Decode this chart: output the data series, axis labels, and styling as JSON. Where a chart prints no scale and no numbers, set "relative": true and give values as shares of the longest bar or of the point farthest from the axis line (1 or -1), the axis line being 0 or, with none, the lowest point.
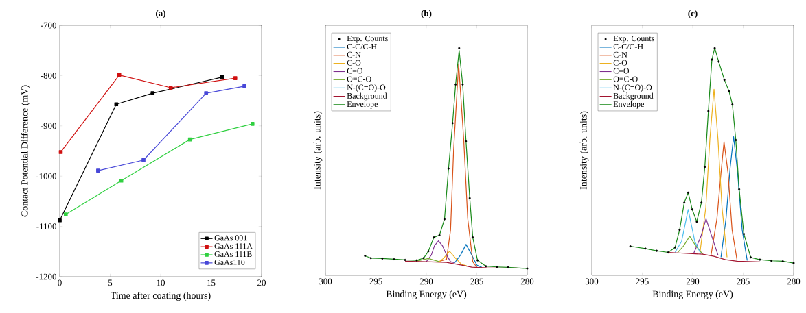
{
  "chart_data": [
    {
      "type": "line",
      "title": "(a)",
      "xlabel": "Time after coating (hours)",
      "ylabel": "Contact Potential Difference (mV)",
      "xlim": [
        0,
        20
      ],
      "xticks": [
        0,
        5,
        10,
        15,
        20
      ],
      "ylim": [
        -1200,
        -700
      ],
      "yticks": [
        -1200,
        -1100,
        -1000,
        -900,
        -800,
        -700
      ],
      "legend": "bottom right",
      "marker": "square",
      "series": [
        {
          "name": "GaAs 001",
          "color": "#000000",
          "x": [
            0.0,
            5.6,
            9.2,
            16.1
          ],
          "values": [
            -1088,
            -857,
            -835,
            -803
          ]
        },
        {
          "name": "GaAs 111A",
          "color": "#d01010",
          "x": [
            0.1,
            5.9,
            11.0,
            17.4
          ],
          "values": [
            -952,
            -799,
            -824,
            -805
          ]
        },
        {
          "name": "GaAs 111B",
          "color": "#30d040",
          "x": [
            0.6,
            6.1,
            12.9,
            19.1
          ],
          "values": [
            -1076,
            -1009,
            -927,
            -896
          ]
        },
        {
          "name": "GaAs110",
          "color": "#4848d8",
          "x": [
            3.8,
            8.3,
            14.5,
            18.3
          ],
          "values": [
            -989,
            -968,
            -835,
            -821
          ]
        }
      ]
    },
    {
      "type": "line",
      "title": "(b)",
      "xlabel": "Binding Energy (eV)",
      "ylabel": "Intensity (arb. units)",
      "relative": true,
      "xlim": [
        300,
        280
      ],
      "xticks": [
        300,
        295,
        290,
        285,
        280
      ],
      "legend": "top left",
      "series": [
        {
          "name": "Exp. Counts",
          "type": "scatter",
          "color": "#000000",
          "x": [
            296.07,
            295.5,
            294.36,
            293.2,
            292.1,
            290.95,
            290.27,
            289.8,
            289.25,
            288.7,
            288.2,
            287.8,
            287.4,
            287.1,
            286.75,
            286.4,
            286.07,
            285.7,
            285.4,
            284.93,
            284.1,
            283.0,
            281.9,
            280.0
          ],
          "values": [
            0.086,
            0.076,
            0.074,
            0.071,
            0.068,
            0.066,
            0.076,
            0.106,
            0.167,
            0.177,
            0.247,
            0.47,
            0.67,
            0.84,
            1.0,
            0.84,
            0.59,
            0.34,
            0.167,
            0.066,
            0.04,
            0.037,
            0.035,
            0.03
          ]
        },
        {
          "name": "C-C/C-H",
          "color": "#0072bd",
          "x": [
            287.2,
            286.6,
            286.07,
            285.5,
            285.0,
            284.5
          ],
          "values": [
            0.055,
            0.09,
            0.136,
            0.09,
            0.045,
            0.035
          ]
        },
        {
          "name": "C-N",
          "color": "#d95319",
          "x": [
            289.0,
            288.0,
            287.6,
            287.3,
            286.8,
            286.3,
            285.9,
            285.4,
            285.0
          ],
          "values": [
            0.058,
            0.07,
            0.2,
            0.55,
            0.93,
            0.6,
            0.25,
            0.06,
            0.036
          ]
        },
        {
          "name": "C-O",
          "color": "#edb120",
          "x": [
            288.8,
            288.3,
            287.7,
            287.1,
            286.5,
            286.0
          ],
          "values": [
            0.057,
            0.075,
            0.106,
            0.075,
            0.048,
            0.042
          ]
        },
        {
          "name": "C=O",
          "color": "#7e2f8e",
          "x": [
            290.0,
            289.5,
            289.2,
            288.8,
            288.4,
            288.0,
            287.6,
            287.2
          ],
          "values": [
            0.06,
            0.09,
            0.13,
            0.152,
            0.13,
            0.09,
            0.06,
            0.055
          ]
        },
        {
          "name": "O=C-O",
          "color": "#77ac30",
          "x": [
            291.0,
            289.8,
            288.7
          ],
          "values": [
            0.062,
            0.074,
            0.06
          ]
        },
        {
          "name": "N-(C=O)-O",
          "color": "#4dbeee"
        },
        {
          "name": "Background",
          "color": "#a2142f",
          "x": [
            292.1,
            290.0,
            288.0,
            286.5,
            285.5,
            284.0,
            281.0
          ],
          "values": [
            0.062,
            0.06,
            0.057,
            0.045,
            0.036,
            0.033,
            0.032
          ]
        },
        {
          "name": "Envelope",
          "color": "#1a8a1a",
          "x": [
            296.07,
            295.5,
            294.36,
            293.2,
            292.1,
            290.95,
            290.27,
            289.8,
            289.25,
            288.7,
            288.2,
            287.8,
            287.4,
            287.1,
            286.75,
            286.4,
            286.07,
            285.7,
            285.4,
            284.93,
            284.1,
            283.0,
            281.9,
            280.0
          ],
          "values": [
            0.086,
            0.076,
            0.074,
            0.071,
            0.068,
            0.066,
            0.076,
            0.106,
            0.167,
            0.177,
            0.247,
            0.47,
            0.67,
            0.84,
            0.99,
            0.84,
            0.59,
            0.34,
            0.167,
            0.066,
            0.04,
            0.037,
            0.035,
            0.03
          ]
        }
      ]
    },
    {
      "type": "line",
      "title": "(c)",
      "xlabel": "Binding Energy (eV)",
      "ylabel": "Intensity (arb. units)",
      "relative": true,
      "xlim": [
        300,
        280
      ],
      "xticks": [
        300,
        295,
        290,
        285,
        280
      ],
      "legend": "top left",
      "series": [
        {
          "name": "Exp. Counts",
          "type": "scatter",
          "color": "#000000",
          "x": [
            296.18,
            294.7,
            293.57,
            292.43,
            291.75,
            291.3,
            290.84,
            290.45,
            290.05,
            289.6,
            289.14,
            288.8,
            288.45,
            288.1,
            287.82,
            287.43,
            286.86,
            286.4,
            286.07,
            285.73,
            285.4,
            284.93,
            284.25,
            283.34,
            282.2,
            281.07,
            280.0
          ],
          "values": [
            0.128,
            0.118,
            0.108,
            0.101,
            0.123,
            0.2,
            0.32,
            0.364,
            0.29,
            0.236,
            0.32,
            0.477,
            0.723,
            0.949,
            1.0,
            0.94,
            0.86,
            0.81,
            0.752,
            0.595,
            0.379,
            0.182,
            0.079,
            0.069,
            0.064,
            0.062,
            0.054
          ]
        },
        {
          "name": "C-C/C-H",
          "color": "#0072bd",
          "x": [
            287.2,
            286.7,
            286.3,
            285.95,
            285.55,
            285.1,
            284.6
          ],
          "values": [
            0.08,
            0.25,
            0.47,
            0.61,
            0.45,
            0.2,
            0.065
          ]
        },
        {
          "name": "C-N",
          "color": "#d95319",
          "x": [
            288.2,
            287.6,
            287.2,
            286.9,
            286.5,
            286.1,
            285.6
          ],
          "values": [
            0.085,
            0.25,
            0.45,
            0.588,
            0.45,
            0.2,
            0.065
          ]
        },
        {
          "name": "C-O",
          "color": "#edb120",
          "x": [
            289.3,
            288.7,
            288.3,
            287.89,
            287.5,
            287.1,
            286.6
          ],
          "values": [
            0.095,
            0.3,
            0.6,
            0.819,
            0.6,
            0.3,
            0.08
          ]
        },
        {
          "name": "C=O",
          "color": "#7e2f8e",
          "x": [
            289.9,
            289.2,
            288.68,
            288.1,
            287.5
          ],
          "values": [
            0.097,
            0.17,
            0.249,
            0.17,
            0.09
          ]
        },
        {
          "name": "O=C-O",
          "color": "#77ac30",
          "x": [
            291.5,
            290.9,
            290.3,
            289.7,
            289.0
          ],
          "values": [
            0.1,
            0.13,
            0.172,
            0.13,
            0.093
          ]
        },
        {
          "name": "N-(C=O)-O",
          "color": "#4dbeee",
          "x": [
            291.75,
            291.1,
            290.45,
            289.8,
            289.2
          ],
          "values": [
            0.101,
            0.15,
            0.29,
            0.15,
            0.095
          ]
        },
        {
          "name": "Background",
          "color": "#a2142f",
          "x": [
            292.43,
            289.0,
            287.9,
            286.75,
            285.6,
            283.34
          ],
          "values": [
            0.101,
            0.093,
            0.084,
            0.069,
            0.062,
            0.059
          ]
        },
        {
          "name": "Envelope",
          "color": "#1a8a1a",
          "x": [
            296.18,
            294.7,
            293.57,
            292.43,
            291.75,
            291.3,
            290.84,
            290.45,
            290.05,
            289.6,
            289.14,
            288.8,
            288.45,
            288.1,
            287.82,
            287.43,
            286.86,
            286.4,
            286.07,
            285.73,
            285.4,
            284.93,
            284.25,
            283.34,
            282.2,
            281.07,
            280.0
          ],
          "values": [
            0.128,
            0.118,
            0.108,
            0.101,
            0.123,
            0.2,
            0.32,
            0.364,
            0.29,
            0.236,
            0.32,
            0.477,
            0.723,
            0.949,
            1.0,
            0.94,
            0.86,
            0.81,
            0.752,
            0.595,
            0.379,
            0.182,
            0.079,
            0.069,
            0.064,
            0.062,
            0.054
          ]
        }
      ]
    }
  ]
}
